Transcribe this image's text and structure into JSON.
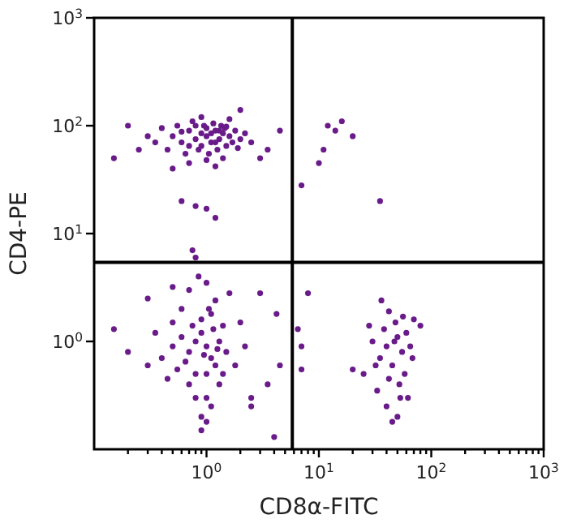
{
  "chart_data": {
    "type": "scatter",
    "xlabel": "CD8α-FITC",
    "ylabel": "CD4-PE",
    "log": "xy",
    "marker": "circle",
    "grid": false,
    "xlim": [
      0.1,
      1000
    ],
    "ylim": [
      0.1,
      1000
    ],
    "xticks": [
      {
        "value": 0.2,
        "label": null
      },
      {
        "value": 0.3,
        "label": null
      },
      {
        "value": 0.4,
        "label": null
      },
      {
        "value": 0.5,
        "label": null
      },
      {
        "value": 0.6,
        "label": null
      },
      {
        "value": 0.7,
        "label": null
      },
      {
        "value": 0.8,
        "label": null
      },
      {
        "value": 0.9,
        "label": null
      },
      {
        "value": 1,
        "label": "10$^{0}$"
      },
      {
        "value": 2,
        "label": null
      },
      {
        "value": 3,
        "label": null
      },
      {
        "value": 4,
        "label": null
      },
      {
        "value": 5,
        "label": null
      },
      {
        "value": 6,
        "label": null
      },
      {
        "value": 7,
        "label": null
      },
      {
        "value": 8,
        "label": null
      },
      {
        "value": 9,
        "label": null
      },
      {
        "value": 10,
        "label": "10$^{1}$"
      },
      {
        "value": 20,
        "label": null
      },
      {
        "value": 30,
        "label": null
      },
      {
        "value": 40,
        "label": null
      },
      {
        "value": 50,
        "label": null
      },
      {
        "value": 60,
        "label": null
      },
      {
        "value": 70,
        "label": null
      },
      {
        "value": 80,
        "label": null
      },
      {
        "value": 90,
        "label": null
      },
      {
        "value": 100,
        "label": "10$^{2}$"
      },
      {
        "value": 200,
        "label": null
      },
      {
        "value": 300,
        "label": null
      },
      {
        "value": 400,
        "label": null
      },
      {
        "value": 500,
        "label": null
      },
      {
        "value": 600,
        "label": null
      },
      {
        "value": 700,
        "label": null
      },
      {
        "value": 800,
        "label": null
      },
      {
        "value": 900,
        "label": null
      },
      {
        "value": 1000,
        "label": "10$^{3}$"
      }
    ],
    "yticks": [
      {
        "value": 1,
        "label": "10$^{0}$"
      },
      {
        "value": 10,
        "label": "10$^{1}$"
      },
      {
        "value": 100,
        "label": "10$^{2}$"
      },
      {
        "value": 1000,
        "label": "10$^{3}$"
      }
    ],
    "ref_lines": [
      {
        "axis": "x",
        "value": 5.8,
        "color": "#000000"
      },
      {
        "axis": "y",
        "value": 5.4,
        "color": "#000000"
      }
    ],
    "series": [
      {
        "color": "#6a1b8a",
        "x": [
          0.5,
          0.6,
          0.7,
          0.8,
          0.9,
          1.0,
          1.1,
          1.2,
          1.3,
          1.4,
          1.5,
          1.6,
          1.8,
          2.0,
          0.4,
          0.45,
          0.55,
          0.65,
          0.75,
          0.85,
          0.95,
          1.05,
          1.15,
          1.25,
          1.35,
          1.45,
          1.7,
          2.2,
          0.3,
          0.35,
          1.0,
          0.9,
          1.1,
          1.2,
          0.8,
          1.3,
          0.7,
          0.6,
          1.5,
          1.9,
          0.2,
          0.15,
          0.25,
          2.5,
          0.7,
          1.0,
          1.4,
          0.9,
          1.6,
          2.0,
          0.5,
          1.2,
          0.6,
          0.8,
          1.2,
          1.0,
          0.8,
          0.75,
          3,
          4.5,
          3.5,
          12,
          14,
          11,
          10,
          16,
          20,
          35,
          7,
          0.8,
          1.0,
          0.7,
          0.9,
          1.1,
          0.6,
          1.2,
          0.5,
          1.3,
          0.8,
          1.0,
          0.7,
          0.9,
          1.1,
          0.6,
          1.2,
          0.5,
          1.4,
          1.5,
          0.4,
          0.8,
          1.0,
          0.9,
          1.1,
          0.7,
          1.0,
          0.85,
          0.5,
          1.6,
          2.0,
          2.5,
          0.3,
          0.35,
          0.45,
          1.3,
          1.4,
          0.65,
          0.95,
          1.15,
          0.75,
          1.05,
          0.55,
          1.25,
          2.2,
          0.3,
          0.2,
          0.15,
          0.9,
          1.0,
          1.8,
          3.5,
          4.5,
          4.2,
          3.0,
          2.5,
          4.0,
          30,
          40,
          50,
          35,
          45,
          55,
          38,
          48,
          60,
          42,
          52,
          33,
          58,
          40,
          50,
          62,
          28,
          70,
          65,
          25,
          36,
          56,
          45,
          32,
          68,
          20,
          80,
          47,
          53,
          42,
          7,
          6.5,
          8,
          7
        ],
        "values": [
          80,
          70,
          90,
          75,
          85,
          80,
          70,
          90,
          75,
          85,
          65,
          80,
          90,
          75,
          95,
          60,
          100,
          55,
          110,
          60,
          100,
          55,
          105,
          60,
          100,
          95,
          70,
          85,
          80,
          70,
          95,
          65,
          85,
          70,
          100,
          90,
          65,
          88,
          98,
          62,
          100,
          50,
          60,
          70,
          45,
          48,
          50,
          120,
          115,
          140,
          40,
          42,
          20,
          18,
          14,
          17,
          6,
          7,
          50,
          90,
          60,
          100,
          90,
          60,
          45,
          110,
          80,
          20,
          28,
          1.0,
          0.9,
          0.8,
          1.2,
          0.7,
          1.1,
          0.6,
          0.9,
          1.0,
          0.5,
          0.5,
          0.4,
          1.6,
          1.8,
          2.0,
          2.4,
          1.5,
          1.4,
          0.8,
          0.7,
          0.3,
          0.3,
          0.2,
          0.25,
          3.0,
          3.5,
          4.0,
          3.2,
          2.8,
          1.5,
          0.3,
          0.6,
          1.2,
          0.45,
          0.4,
          0.5,
          0.65,
          0.75,
          1.3,
          1.4,
          2.0,
          0.55,
          0.85,
          0.9,
          2.5,
          0.8,
          1.3,
          0.15,
          0.18,
          0.6,
          0.4,
          0.6,
          1.8,
          2.8,
          0.25,
          0.13,
          1.0,
          0.9,
          1.1,
          0.7,
          0.6,
          0.8,
          1.3,
          1.5,
          1.2,
          0.45,
          0.4,
          0.35,
          0.5,
          0.25,
          0.2,
          0.3,
          1.4,
          1.6,
          0.9,
          0.5,
          2.4,
          1.7,
          0.18,
          0.6,
          0.7,
          0.55,
          1.4,
          1.0,
          0.3,
          1.9,
          0.9,
          1.3,
          2.8,
          0.55
        ]
      }
    ]
  }
}
